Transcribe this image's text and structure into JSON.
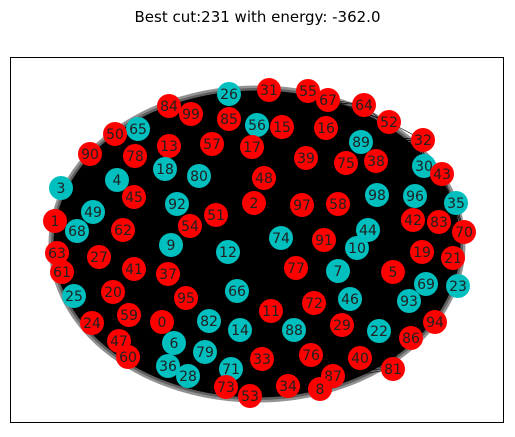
{
  "title": "Best cut:231 with energy: -362.0",
  "colors": {
    "red": "#ff0000",
    "cyan": "#00bfbf",
    "edge": "#000000",
    "background": "#ffffff"
  },
  "nodes": [
    {
      "id": "26",
      "color": "cyan"
    },
    {
      "id": "31",
      "color": "red"
    },
    {
      "id": "55",
      "color": "red"
    },
    {
      "id": "67",
      "color": "red"
    },
    {
      "id": "84",
      "color": "red"
    },
    {
      "id": "99",
      "color": "red"
    },
    {
      "id": "85",
      "color": "red"
    },
    {
      "id": "56",
      "color": "cyan"
    },
    {
      "id": "15",
      "color": "red"
    },
    {
      "id": "16",
      "color": "red"
    },
    {
      "id": "64",
      "color": "red"
    },
    {
      "id": "52",
      "color": "red"
    },
    {
      "id": "65",
      "color": "cyan"
    },
    {
      "id": "50",
      "color": "red"
    },
    {
      "id": "89",
      "color": "cyan"
    },
    {
      "id": "32",
      "color": "red"
    },
    {
      "id": "13",
      "color": "red"
    },
    {
      "id": "57",
      "color": "red"
    },
    {
      "id": "17",
      "color": "red"
    },
    {
      "id": "90",
      "color": "red"
    },
    {
      "id": "78",
      "color": "red"
    },
    {
      "id": "39",
      "color": "red"
    },
    {
      "id": "75",
      "color": "red"
    },
    {
      "id": "38",
      "color": "red"
    },
    {
      "id": "30",
      "color": "cyan"
    },
    {
      "id": "18",
      "color": "cyan"
    },
    {
      "id": "80",
      "color": "cyan"
    },
    {
      "id": "48",
      "color": "red"
    },
    {
      "id": "43",
      "color": "red"
    },
    {
      "id": "3",
      "color": "cyan"
    },
    {
      "id": "4",
      "color": "cyan"
    },
    {
      "id": "45",
      "color": "red"
    },
    {
      "id": "98",
      "color": "cyan"
    },
    {
      "id": "96",
      "color": "cyan"
    },
    {
      "id": "35",
      "color": "cyan"
    },
    {
      "id": "92",
      "color": "cyan"
    },
    {
      "id": "2",
      "color": "red"
    },
    {
      "id": "97",
      "color": "red"
    },
    {
      "id": "58",
      "color": "red"
    },
    {
      "id": "49",
      "color": "cyan"
    },
    {
      "id": "1",
      "color": "red"
    },
    {
      "id": "51",
      "color": "red"
    },
    {
      "id": "42",
      "color": "red"
    },
    {
      "id": "83",
      "color": "red"
    },
    {
      "id": "70",
      "color": "red"
    },
    {
      "id": "68",
      "color": "cyan"
    },
    {
      "id": "62",
      "color": "red"
    },
    {
      "id": "54",
      "color": "red"
    },
    {
      "id": "44",
      "color": "cyan"
    },
    {
      "id": "63",
      "color": "red"
    },
    {
      "id": "74",
      "color": "cyan"
    },
    {
      "id": "91",
      "color": "red"
    },
    {
      "id": "10",
      "color": "cyan"
    },
    {
      "id": "9",
      "color": "cyan"
    },
    {
      "id": "12",
      "color": "cyan"
    },
    {
      "id": "19",
      "color": "red"
    },
    {
      "id": "27",
      "color": "red"
    },
    {
      "id": "21",
      "color": "red"
    },
    {
      "id": "61",
      "color": "red"
    },
    {
      "id": "41",
      "color": "red"
    },
    {
      "id": "37",
      "color": "red"
    },
    {
      "id": "77",
      "color": "red"
    },
    {
      "id": "7",
      "color": "cyan"
    },
    {
      "id": "5",
      "color": "red"
    },
    {
      "id": "69",
      "color": "cyan"
    },
    {
      "id": "23",
      "color": "cyan"
    },
    {
      "id": "25",
      "color": "cyan"
    },
    {
      "id": "20",
      "color": "red"
    },
    {
      "id": "66",
      "color": "cyan"
    },
    {
      "id": "95",
      "color": "red"
    },
    {
      "id": "46",
      "color": "cyan"
    },
    {
      "id": "93",
      "color": "cyan"
    },
    {
      "id": "11",
      "color": "red"
    },
    {
      "id": "72",
      "color": "red"
    },
    {
      "id": "24",
      "color": "red"
    },
    {
      "id": "59",
      "color": "red"
    },
    {
      "id": "0",
      "color": "red"
    },
    {
      "id": "82",
      "color": "cyan"
    },
    {
      "id": "94",
      "color": "red"
    },
    {
      "id": "14",
      "color": "cyan"
    },
    {
      "id": "88",
      "color": "cyan"
    },
    {
      "id": "29",
      "color": "red"
    },
    {
      "id": "22",
      "color": "cyan"
    },
    {
      "id": "47",
      "color": "red"
    },
    {
      "id": "6",
      "color": "cyan"
    },
    {
      "id": "86",
      "color": "red"
    },
    {
      "id": "60",
      "color": "red"
    },
    {
      "id": "79",
      "color": "cyan"
    },
    {
      "id": "76",
      "color": "red"
    },
    {
      "id": "36",
      "color": "cyan"
    },
    {
      "id": "33",
      "color": "red"
    },
    {
      "id": "40",
      "color": "red"
    },
    {
      "id": "71",
      "color": "cyan"
    },
    {
      "id": "28",
      "color": "cyan"
    },
    {
      "id": "81",
      "color": "red"
    },
    {
      "id": "87",
      "color": "red"
    },
    {
      "id": "34",
      "color": "red"
    },
    {
      "id": "8",
      "color": "red"
    },
    {
      "id": "73",
      "color": "red"
    },
    {
      "id": "53",
      "color": "red"
    }
  ]
}
